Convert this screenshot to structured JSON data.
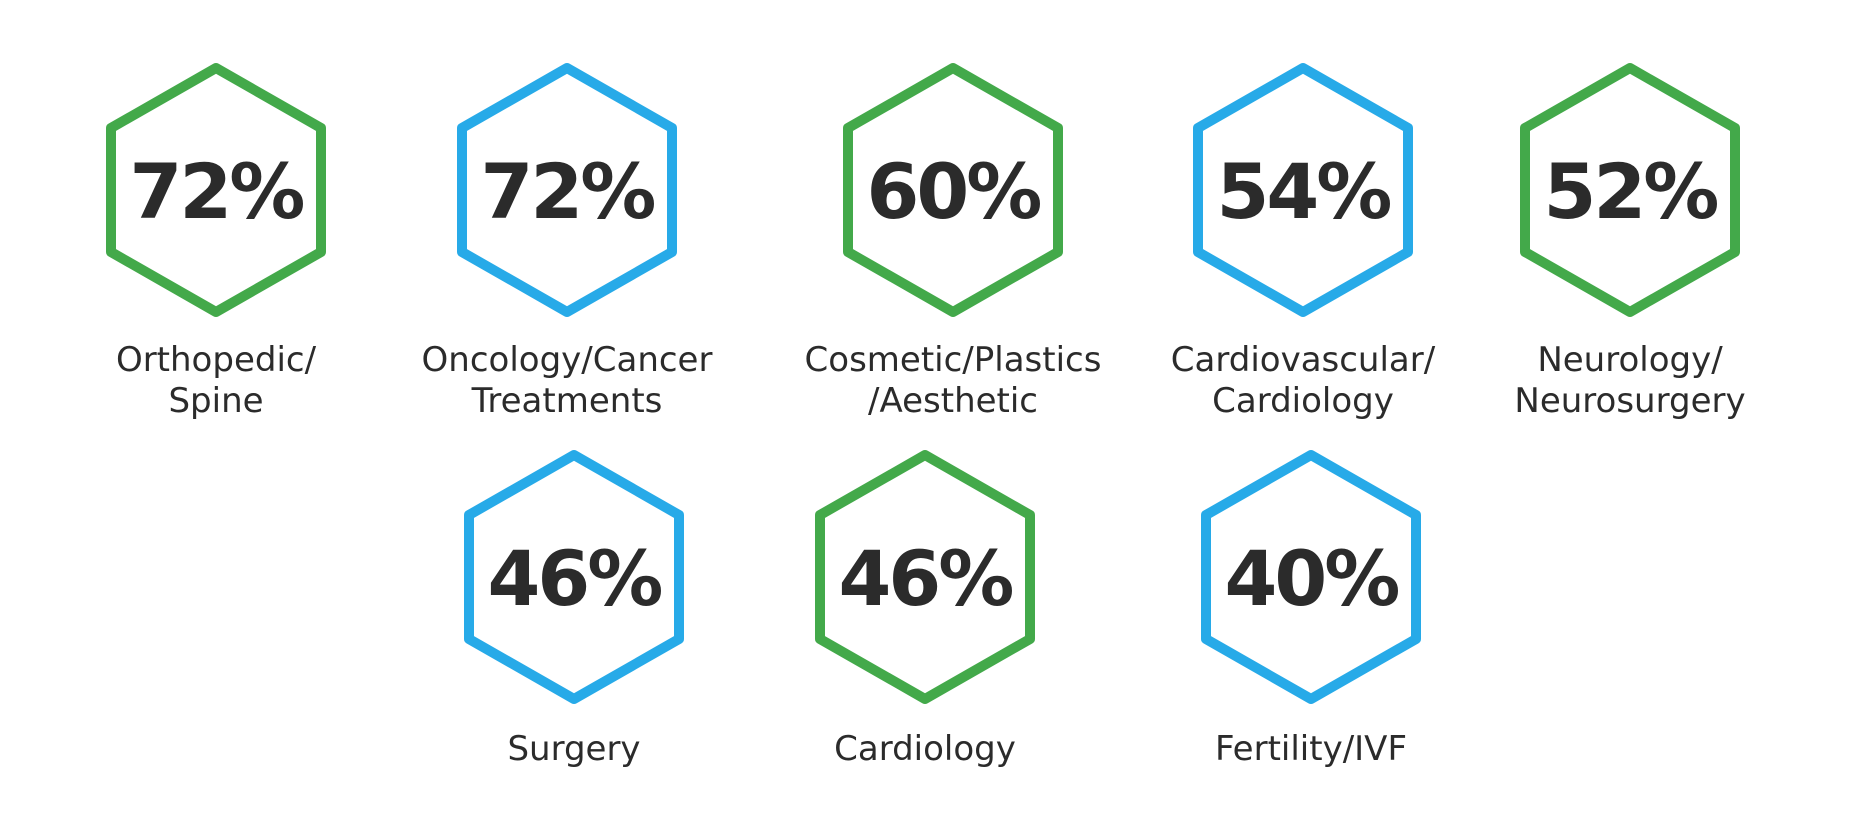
{
  "colors": {
    "green": "#43a94a",
    "blue": "#27aae8",
    "text": "#2b2b2b"
  },
  "stats": [
    {
      "value": "72%",
      "label": "Orthopedic/\nSpine",
      "color": "green"
    },
    {
      "value": "72%",
      "label": "Oncology/Cancer\nTreatments",
      "color": "blue"
    },
    {
      "value": "60%",
      "label": "Cosmetic/Plastics\n/Aesthetic",
      "color": "green"
    },
    {
      "value": "54%",
      "label": "Cardiovascular/\nCardiology",
      "color": "blue"
    },
    {
      "value": "52%",
      "label": "Neurology/\nNeurosurgery",
      "color": "green"
    },
    {
      "value": "46%",
      "label": "Surgery",
      "color": "blue"
    },
    {
      "value": "46%",
      "label": "Cardiology",
      "color": "green"
    },
    {
      "value": "40%",
      "label": "Fertility/IVF",
      "color": "blue"
    }
  ]
}
